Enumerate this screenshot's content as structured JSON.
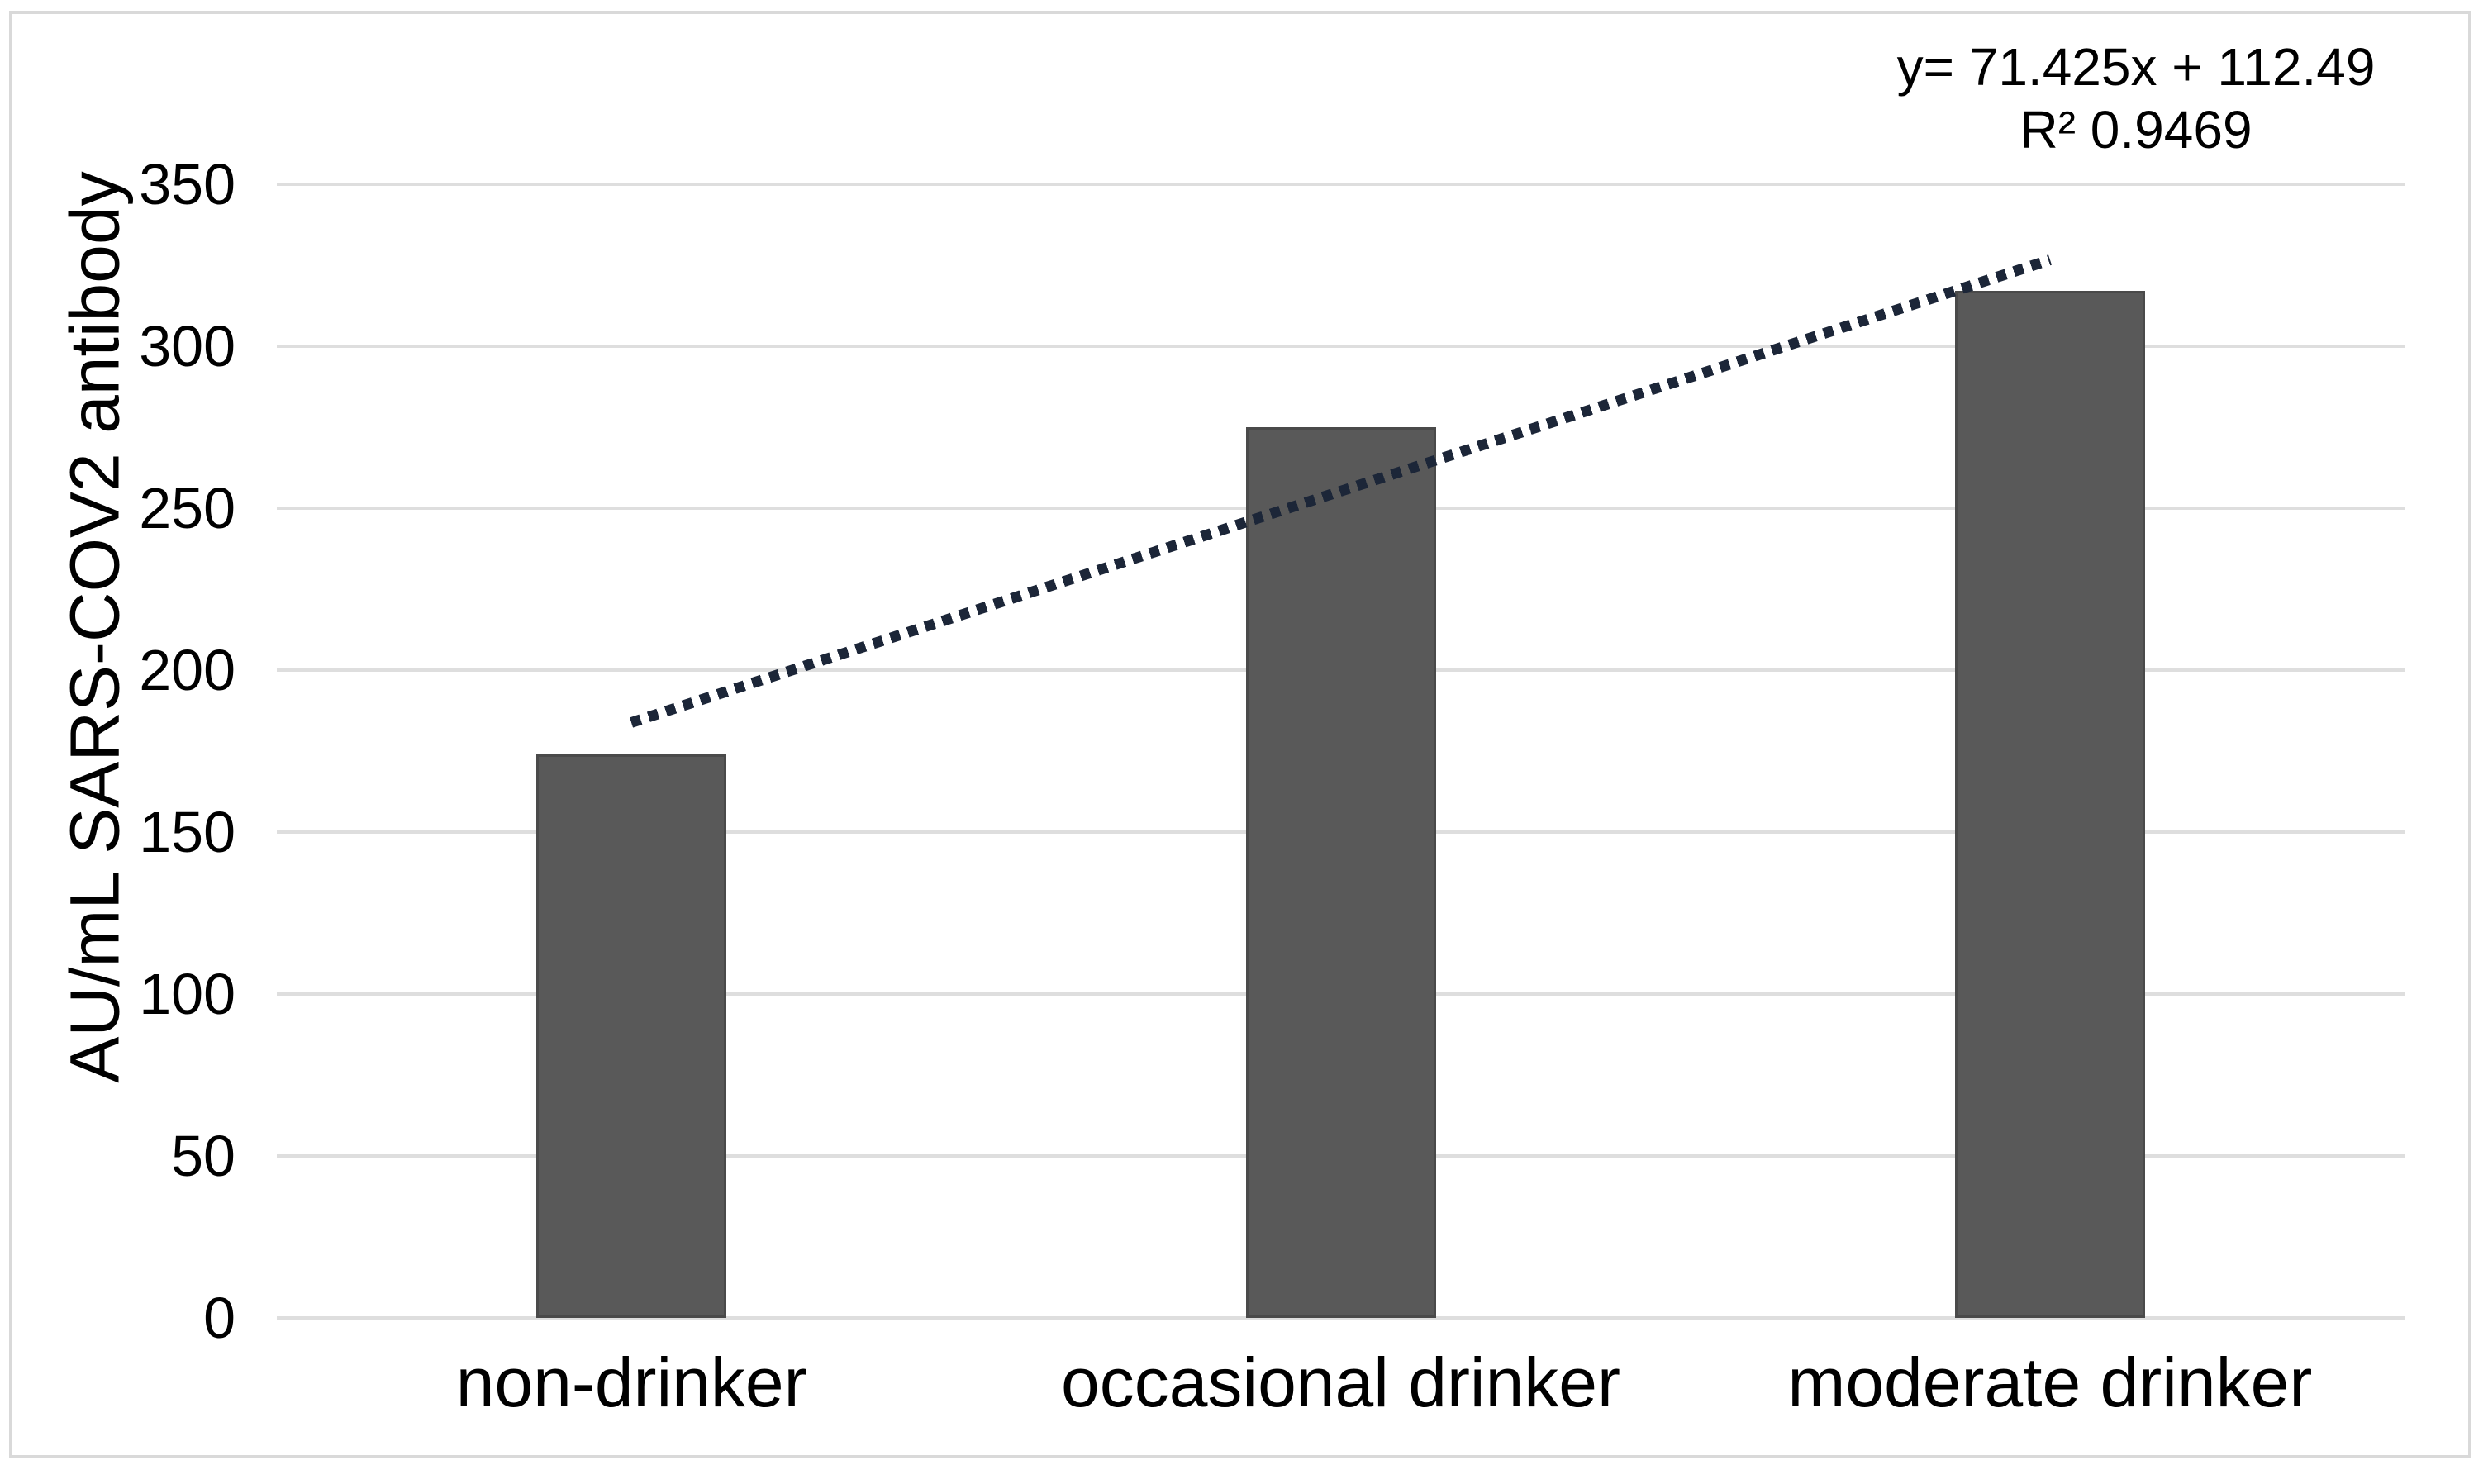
{
  "chart_data": {
    "type": "bar",
    "categories": [
      "non-drinker",
      "occasional drinker",
      "moderate drinker"
    ],
    "values": [
      174,
      275,
      317
    ],
    "title": "",
    "xlabel": "",
    "ylabel": "AU/mL SARS-COV2 antibody",
    "ylim": [
      0,
      350
    ],
    "ytick_step": 50,
    "yticks": [
      "0",
      "50",
      "100",
      "150",
      "200",
      "250",
      "300",
      "350"
    ],
    "grid": "horizontal-only",
    "legend": "none",
    "bar_color": "#595959",
    "bar_border_color": "#4a4a4a",
    "gridline_color": "#dedede",
    "frame_color": "#d9d9d9",
    "trendline": {
      "type": "linear",
      "style": "dotted",
      "color": "#1c2638",
      "slope": 71.425,
      "intercept": 112.49,
      "equation_label": "y= 71.425x + 112.49",
      "r2_label": "R² 0.9469",
      "x_span": [
        1,
        3
      ]
    }
  }
}
